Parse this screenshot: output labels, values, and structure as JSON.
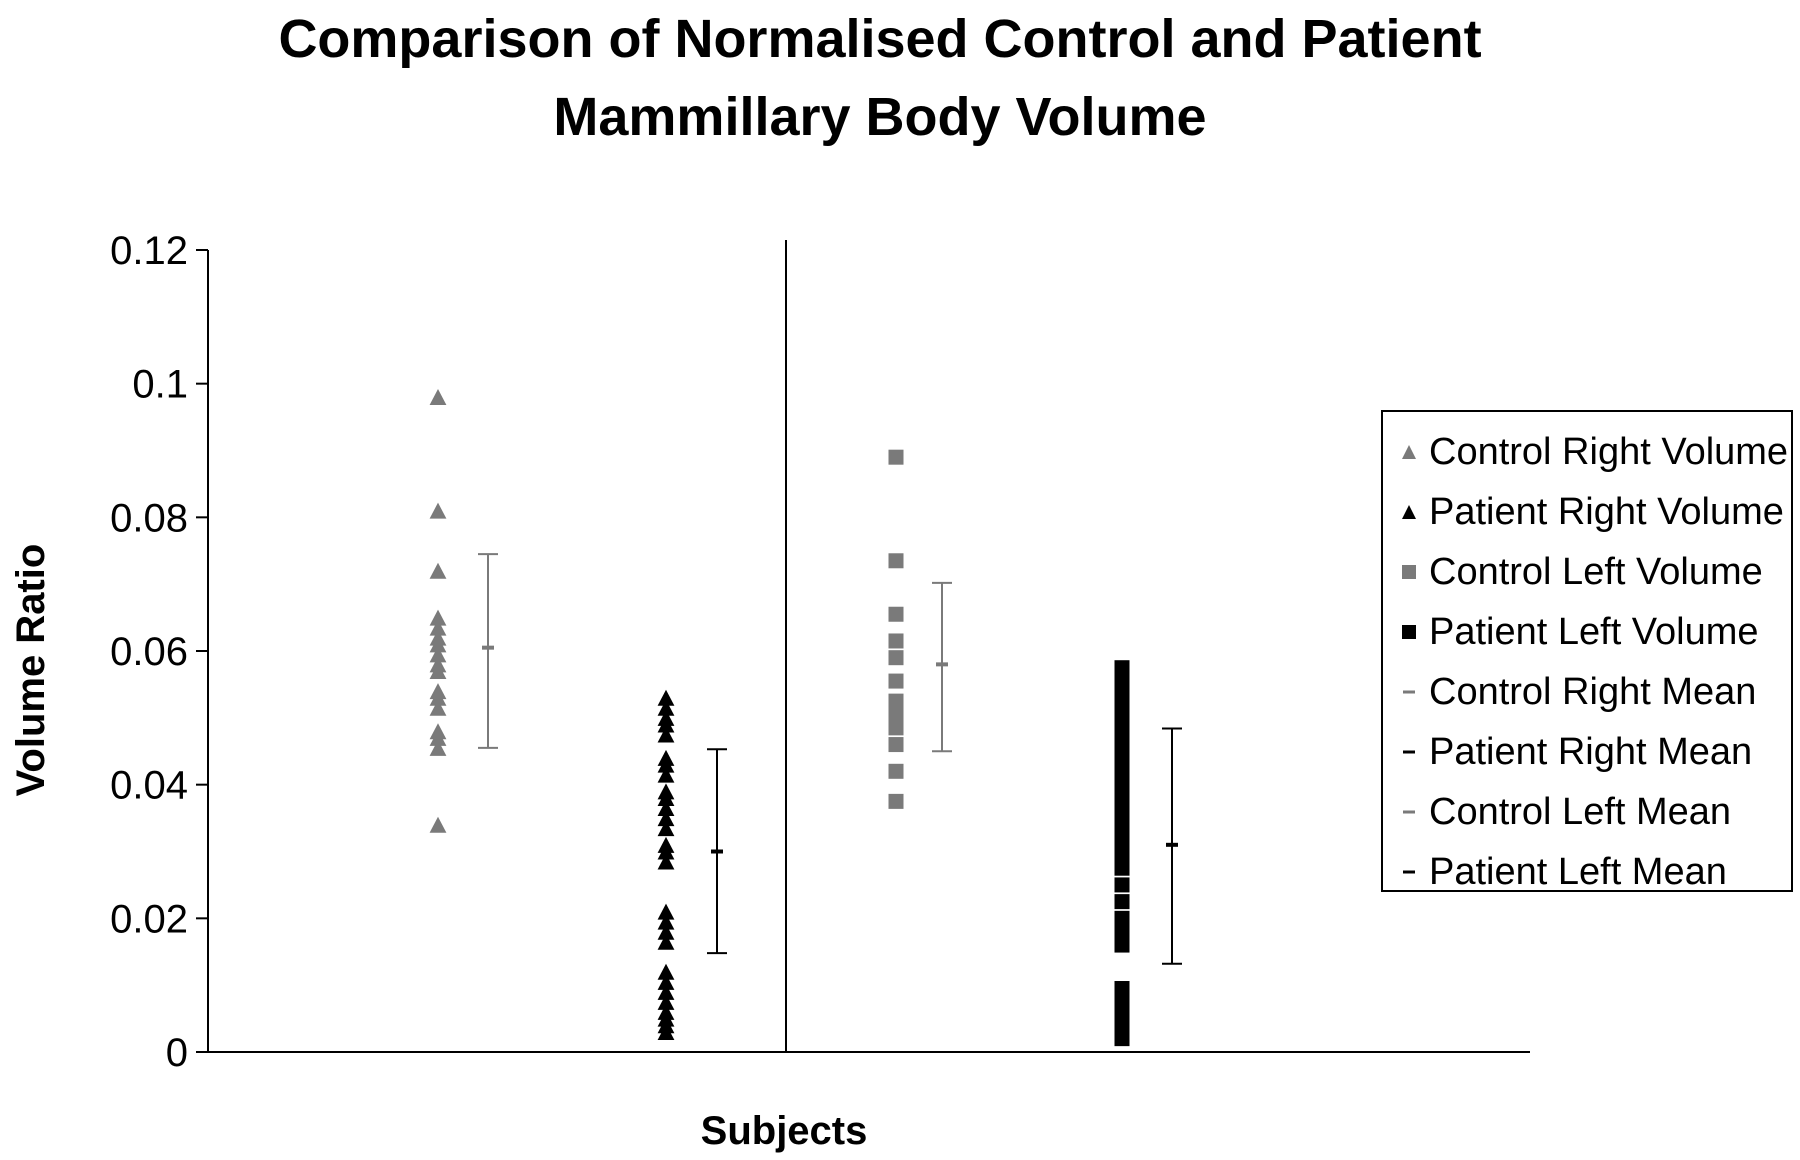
{
  "chart_data": {
    "type": "scatter",
    "title": [
      "Comparison of Normalised Control and Patient",
      "Mammillary Body Volume"
    ],
    "xlabel": "Subjects",
    "ylabel": "Volume Ratio",
    "ylim": [
      0,
      0.12
    ],
    "yticks": [
      "0",
      "0.02",
      "0.04",
      "0.06",
      "0.08",
      "0.1",
      "0.12"
    ],
    "grid": false,
    "legend_position": "right",
    "groups": [
      "Right",
      "Left"
    ],
    "series": [
      {
        "name": "Control Right Volume",
        "marker": "triangle",
        "color": "#7a7a7a",
        "group": "Right",
        "x": 1,
        "values": [
          0.098,
          0.081,
          0.072,
          0.065,
          0.0635,
          0.062,
          0.061,
          0.0595,
          0.058,
          0.057,
          0.054,
          0.053,
          0.0515,
          0.048,
          0.047,
          0.0455,
          0.034
        ]
      },
      {
        "name": "Patient Right Volume",
        "marker": "triangle",
        "color": "#000000",
        "group": "Right",
        "x": 2,
        "values": [
          0.053,
          0.0515,
          0.05,
          0.049,
          0.0475,
          0.044,
          0.043,
          0.0415,
          0.039,
          0.038,
          0.0365,
          0.035,
          0.0335,
          0.031,
          0.03,
          0.0285,
          0.021,
          0.0195,
          0.018,
          0.0165,
          0.012,
          0.0105,
          0.009,
          0.0075,
          0.006,
          0.005,
          0.004,
          0.003
        ]
      },
      {
        "name": "Control Left Volume",
        "marker": "square",
        "color": "#7a7a7a",
        "group": "Left",
        "x": 1,
        "values": [
          0.089,
          0.0735,
          0.0655,
          0.0615,
          0.059,
          0.0555,
          0.0525,
          0.0505,
          0.0485,
          0.046,
          0.042,
          0.0375
        ]
      },
      {
        "name": "Patient Left Volume",
        "marker": "square",
        "color": "#000000",
        "group": "Left",
        "x": 2,
        "values": [
          0.0575,
          0.0555,
          0.0535,
          0.0515,
          0.0495,
          0.0475,
          0.0455,
          0.0435,
          0.0415,
          0.0395,
          0.0375,
          0.0355,
          0.0335,
          0.0315,
          0.0295,
          0.0275,
          0.025,
          0.0225,
          0.02,
          0.018,
          0.016,
          0.0095,
          0.0075,
          0.0055,
          0.0035,
          0.002
        ]
      }
    ],
    "means": [
      {
        "name": "Control Right Mean",
        "color": "#7a7a7a",
        "group": "Right",
        "x": 1.5,
        "mean": 0.0605,
        "low": 0.0455,
        "high": 0.0745
      },
      {
        "name": "Patient Right Mean",
        "color": "#000000",
        "group": "Right",
        "x": 2.5,
        "mean": 0.03,
        "low": 0.0148,
        "high": 0.0453
      },
      {
        "name": "Control Left Mean",
        "color": "#7a7a7a",
        "group": "Left",
        "x": 1.5,
        "mean": 0.058,
        "low": 0.045,
        "high": 0.0702
      },
      {
        "name": "Patient Left Mean",
        "color": "#000000",
        "group": "Left",
        "x": 2.5,
        "mean": 0.031,
        "low": 0.0132,
        "high": 0.0484
      }
    ]
  }
}
